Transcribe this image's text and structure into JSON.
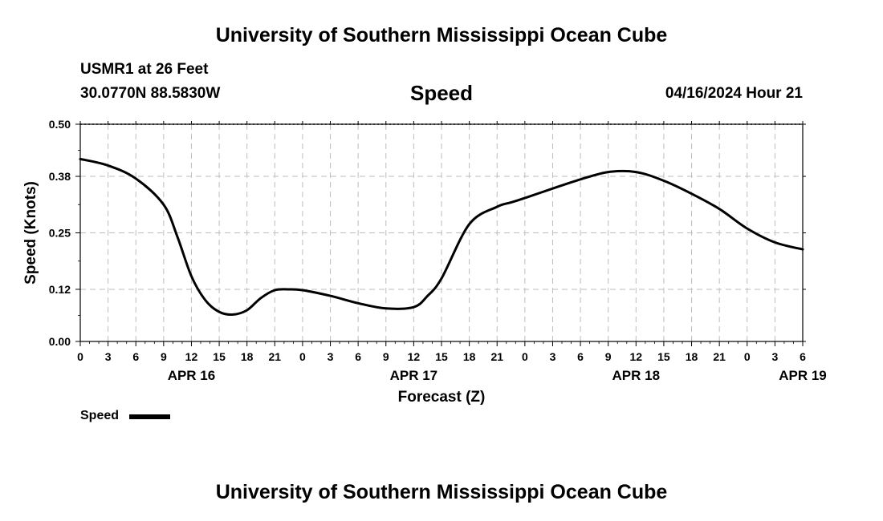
{
  "header": {
    "title": "University of Southern Mississippi Ocean Cube",
    "station": "USMR1 at 26 Feet",
    "coords": "30.0770N  88.5830W",
    "variable": "Speed",
    "datetime": "04/16/2024 Hour 21"
  },
  "footer": {
    "title": "University of Southern Mississippi Ocean Cube"
  },
  "legend": {
    "label": "Speed",
    "color": "#000000"
  },
  "chart_data": {
    "type": "line",
    "title": "Speed",
    "xlabel": "Forecast (Z)",
    "ylabel": "Speed (Knots)",
    "xlim": [
      0,
      78
    ],
    "ylim": [
      0,
      0.5
    ],
    "y_ticks": [
      0.0,
      0.12,
      0.25,
      0.38,
      0.5
    ],
    "y_tick_labels": [
      "0.00",
      "0.12",
      "0.25",
      "0.38",
      "0.50"
    ],
    "x_ticks": [
      0,
      3,
      6,
      9,
      12,
      15,
      18,
      21,
      24,
      27,
      30,
      33,
      36,
      39,
      42,
      45,
      48,
      51,
      54,
      57,
      60,
      63,
      66,
      69,
      72,
      75,
      78
    ],
    "x_tick_labels": [
      "0",
      "3",
      "6",
      "9",
      "12",
      "15",
      "18",
      "21",
      "0",
      "3",
      "6",
      "9",
      "12",
      "15",
      "18",
      "21",
      "0",
      "3",
      "6",
      "9",
      "12",
      "15",
      "18",
      "21",
      "0",
      "3",
      "6"
    ],
    "date_labels": [
      {
        "x": 12,
        "label": "APR 16"
      },
      {
        "x": 36,
        "label": "APR 17"
      },
      {
        "x": 60,
        "label": "APR 18"
      },
      {
        "x": 78,
        "label": "APR 19"
      }
    ],
    "grid": true,
    "series": [
      {
        "name": "Speed",
        "color": "#000000",
        "x": [
          0,
          3,
          6,
          9,
          10.5,
          12,
          13.5,
          15,
          16.5,
          18,
          19.5,
          21,
          22.5,
          24,
          27,
          30,
          33,
          36,
          37.5,
          39,
          42,
          45,
          46.5,
          48,
          51,
          54,
          57,
          60,
          63,
          66,
          69,
          72,
          75,
          78
        ],
        "y": [
          0.42,
          0.405,
          0.375,
          0.315,
          0.24,
          0.15,
          0.095,
          0.068,
          0.062,
          0.072,
          0.1,
          0.118,
          0.12,
          0.118,
          0.105,
          0.088,
          0.076,
          0.079,
          0.105,
          0.145,
          0.27,
          0.31,
          0.32,
          0.33,
          0.352,
          0.373,
          0.39,
          0.39,
          0.37,
          0.34,
          0.305,
          0.26,
          0.228,
          0.212
        ]
      }
    ]
  }
}
